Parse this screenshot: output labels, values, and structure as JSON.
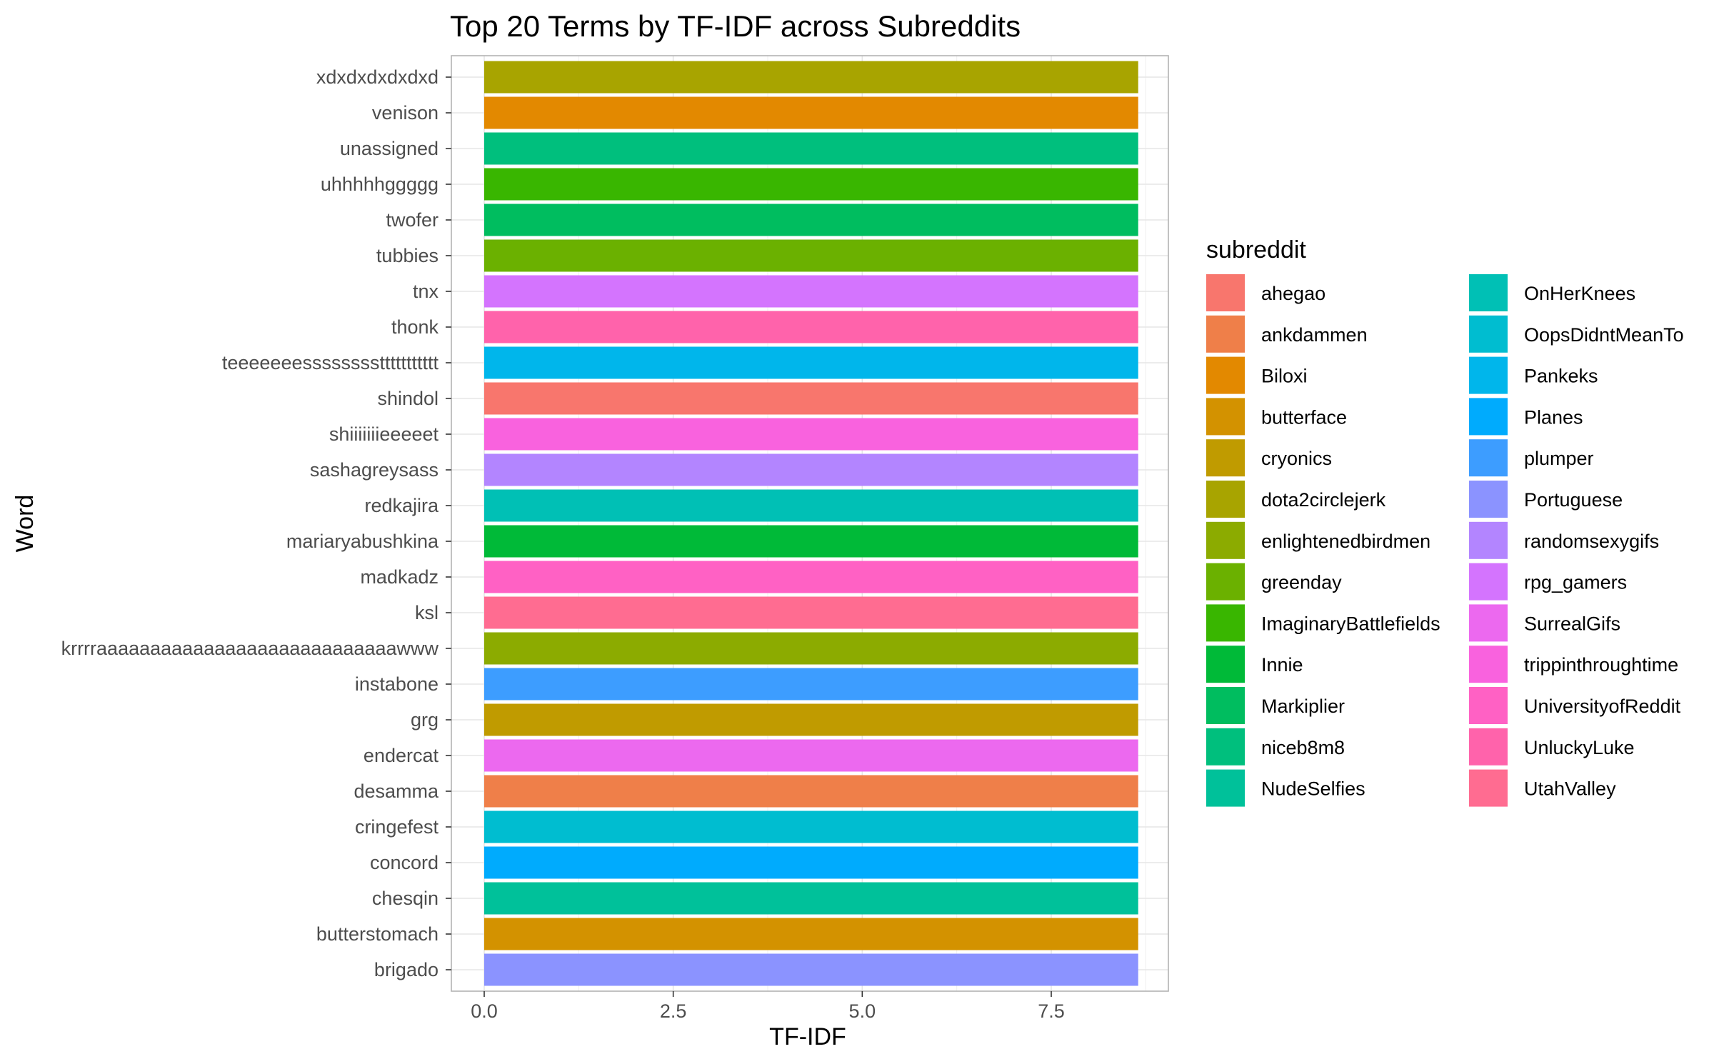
{
  "chart_data": {
    "type": "bar",
    "orientation": "horizontal",
    "title": "Top 20 Terms by TF-IDF across Subreddits",
    "xlabel": "TF-IDF",
    "ylabel": "Word",
    "xlim": [
      0,
      9.1
    ],
    "xticks": [
      0,
      2.5,
      5,
      7.5
    ],
    "xtick_labels": [
      "0.0",
      "2.5",
      "5.0",
      "7.5"
    ],
    "grid": true,
    "legend": {
      "title": "subreddit",
      "placement": "right",
      "columns": 2
    },
    "subreddits": [
      {
        "name": "ahegao",
        "color": "#F8766D"
      },
      {
        "name": "ankdammen",
        "color": "#EF7F49"
      },
      {
        "name": "Biloxi",
        "color": "#E38900"
      },
      {
        "name": "butterface",
        "color": "#D39200"
      },
      {
        "name": "cryonics",
        "color": "#C09B00"
      },
      {
        "name": "dota2circlejerk",
        "color": "#A8A400"
      },
      {
        "name": "enlightenedbirdmen",
        "color": "#8CAB00"
      },
      {
        "name": "greenday",
        "color": "#6BB100"
      },
      {
        "name": "ImaginaryBattlefields",
        "color": "#39B600"
      },
      {
        "name": "Innie",
        "color": "#00BA38"
      },
      {
        "name": "Markiplier",
        "color": "#00BD5F"
      },
      {
        "name": "niceb8m8",
        "color": "#00BF7D"
      },
      {
        "name": "NudeSelfies",
        "color": "#00C19A"
      },
      {
        "name": "OnHerKnees",
        "color": "#00C0B5"
      },
      {
        "name": "OopsDidntMeanTo",
        "color": "#00BDD0"
      },
      {
        "name": "Pankeks",
        "color": "#00B6EB"
      },
      {
        "name": "Planes",
        "color": "#00ABFD"
      },
      {
        "name": "plumper",
        "color": "#3D9DFF"
      },
      {
        "name": "Portuguese",
        "color": "#8B93FF"
      },
      {
        "name": "randomsexygifs",
        "color": "#B385FF"
      },
      {
        "name": "rpg_gamers",
        "color": "#D474FE"
      },
      {
        "name": "SurrealGifs",
        "color": "#EC69EF"
      },
      {
        "name": "trippinthroughtime",
        "color": "#F962DE"
      },
      {
        "name": "UniversityofReddit",
        "color": "#FF61C4"
      },
      {
        "name": "UnluckyLuke",
        "color": "#FF63AB"
      },
      {
        "name": "UtahValley",
        "color": "#FF6C91"
      }
    ],
    "bars": [
      {
        "word": "xdxdxdxdxdxd",
        "value": 8.65,
        "subreddit": "dota2circlejerk"
      },
      {
        "word": "venison",
        "value": 8.65,
        "subreddit": "Biloxi"
      },
      {
        "word": "unassigned",
        "value": 8.65,
        "subreddit": "niceb8m8"
      },
      {
        "word": "uhhhhhggggg",
        "value": 8.65,
        "subreddit": "ImaginaryBattlefields"
      },
      {
        "word": "twofer",
        "value": 8.65,
        "subreddit": "Markiplier"
      },
      {
        "word": "tubbies",
        "value": 8.65,
        "subreddit": "greenday"
      },
      {
        "word": "tnx",
        "value": 8.65,
        "subreddit": "rpg_gamers"
      },
      {
        "word": "thonk",
        "value": 8.65,
        "subreddit": "UnluckyLuke"
      },
      {
        "word": "teeeeeeessssssssttttttttttt",
        "value": 8.65,
        "subreddit": "Pankeks"
      },
      {
        "word": "shindol",
        "value": 8.65,
        "subreddit": "ahegao"
      },
      {
        "word": "shiiiiiiieeeeet",
        "value": 8.65,
        "subreddit": "trippinthroughtime"
      },
      {
        "word": "sashagreysass",
        "value": 8.65,
        "subreddit": "randomsexygifs"
      },
      {
        "word": "redkajira",
        "value": 8.65,
        "subreddit": "OnHerKnees"
      },
      {
        "word": "mariaryabushkina",
        "value": 8.65,
        "subreddit": "Innie"
      },
      {
        "word": "madkadz",
        "value": 8.65,
        "subreddit": "UniversityofReddit"
      },
      {
        "word": "ksl",
        "value": 8.65,
        "subreddit": "UtahValley"
      },
      {
        "word": "krrrraaaaaaaaaaaaaaaaaaaaaaaaaaaawww",
        "value": 8.65,
        "subreddit": "enlightenedbirdmen"
      },
      {
        "word": "instabone",
        "value": 8.65,
        "subreddit": "plumper"
      },
      {
        "word": "grg",
        "value": 8.65,
        "subreddit": "cryonics"
      },
      {
        "word": "endercat",
        "value": 8.65,
        "subreddit": "SurrealGifs"
      },
      {
        "word": "desamma",
        "value": 8.65,
        "subreddit": "ankdammen"
      },
      {
        "word": "cringefest",
        "value": 8.65,
        "subreddit": "OopsDidntMeanTo"
      },
      {
        "word": "concord",
        "value": 8.65,
        "subreddit": "Planes"
      },
      {
        "word": "chesqin",
        "value": 8.65,
        "subreddit": "NudeSelfies"
      },
      {
        "word": "butterstomach",
        "value": 8.65,
        "subreddit": "butterface"
      },
      {
        "word": "brigado",
        "value": 8.65,
        "subreddit": "Portuguese"
      }
    ]
  }
}
